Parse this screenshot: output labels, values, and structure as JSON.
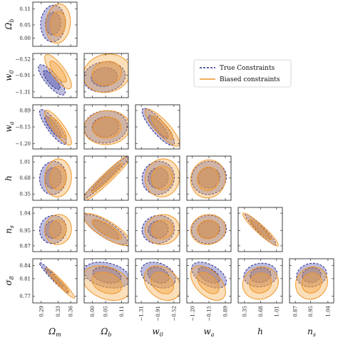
{
  "chart_data": {
    "type": "corner",
    "parameters": [
      {
        "key": "Om",
        "label": "Ω",
        "sub": "m",
        "ticks": [
          "0.29",
          "0.33",
          "0.36"
        ],
        "tick_values": [
          0.29,
          0.33,
          0.36
        ],
        "range": [
          0.27,
          0.375
        ]
      },
      {
        "key": "Ob",
        "label": "Ω",
        "sub": "b",
        "ticks": [
          "0.00",
          "0.05",
          "0.11"
        ],
        "tick_values": [
          0.0,
          0.05,
          0.11
        ],
        "range": [
          -0.03,
          0.135
        ]
      },
      {
        "key": "w0",
        "label": "w",
        "sub": "0",
        "ticks": [
          "−1.31",
          "−0.91",
          "−0.52"
        ],
        "tick_values": [
          -1.31,
          -0.91,
          -0.52
        ],
        "range": [
          -1.45,
          -0.38
        ]
      },
      {
        "key": "wa",
        "label": "w",
        "sub": "a",
        "ticks": [
          "−1.20",
          "−0.15",
          "0.89"
        ],
        "tick_values": [
          -1.2,
          -0.15,
          0.89
        ],
        "range": [
          -1.55,
          1.25
        ]
      },
      {
        "key": "h",
        "label": "h",
        "sub": "",
        "ticks": [
          "0.35",
          "0.68",
          "1.01"
        ],
        "tick_values": [
          0.35,
          0.68,
          1.01
        ],
        "range": [
          0.22,
          1.13
        ]
      },
      {
        "key": "ns",
        "label": "n",
        "sub": "s",
        "ticks": [
          "0.87",
          "0.95",
          "1.04"
        ],
        "tick_values": [
          0.87,
          0.95,
          1.04
        ],
        "range": [
          0.84,
          1.07
        ]
      },
      {
        "key": "s8",
        "label": "σ",
        "sub": "8",
        "ticks": [
          "0.77",
          "0.81",
          "0.84"
        ],
        "tick_values": [
          0.77,
          0.81,
          0.84
        ],
        "range": [
          0.755,
          0.855
        ]
      }
    ],
    "series": [
      {
        "name": "True Constraints",
        "color": "#2b2b8c",
        "fill": "#5a5ab0",
        "style": "dashed",
        "ellipses": [
          {
            "x": "Om",
            "y": "Ob",
            "cx": 0.318,
            "cy": 0.055,
            "sx": 0.012,
            "sy": 0.028,
            "rho": 0.05
          },
          {
            "x": "Om",
            "y": "w0",
            "cx": 0.315,
            "cy": -1.02,
            "sx": 0.013,
            "sy": 0.15,
            "rho": -0.8
          },
          {
            "x": "Ob",
            "y": "w0",
            "cx": 0.045,
            "cy": -0.95,
            "sx": 0.032,
            "sy": 0.15,
            "rho": 0.1
          },
          {
            "x": "Om",
            "y": "wa",
            "cx": 0.318,
            "cy": -0.15,
            "sx": 0.013,
            "sy": 0.45,
            "rho": -0.85
          },
          {
            "x": "Ob",
            "y": "wa",
            "cx": 0.05,
            "cy": -0.15,
            "sx": 0.033,
            "sy": 0.42,
            "rho": 0.05
          },
          {
            "x": "w0",
            "y": "wa",
            "cx": -0.9,
            "cy": -0.15,
            "sx": 0.16,
            "sy": 0.48,
            "rho": -0.85
          },
          {
            "x": "Om",
            "y": "h",
            "cx": 0.318,
            "cy": 0.68,
            "sx": 0.013,
            "sy": 0.14,
            "rho": 0.05
          },
          {
            "x": "Ob",
            "y": "h",
            "cx": 0.05,
            "cy": 0.68,
            "sx": 0.035,
            "sy": 0.18,
            "rho": 0.97
          },
          {
            "x": "w0",
            "y": "h",
            "cx": -0.9,
            "cy": 0.68,
            "sx": 0.16,
            "sy": 0.14,
            "rho": 0.05
          },
          {
            "x": "wa",
            "y": "h",
            "cx": -0.15,
            "cy": 0.68,
            "sx": 0.45,
            "sy": 0.14,
            "rho": 0.05
          },
          {
            "x": "Om",
            "y": "ns",
            "cx": 0.318,
            "cy": 0.955,
            "sx": 0.013,
            "sy": 0.03,
            "rho": 0.05
          },
          {
            "x": "Ob",
            "y": "ns",
            "cx": 0.05,
            "cy": 0.955,
            "sx": 0.033,
            "sy": 0.032,
            "rho": -0.8
          },
          {
            "x": "w0",
            "y": "ns",
            "cx": -0.9,
            "cy": 0.955,
            "sx": 0.16,
            "sy": 0.03,
            "rho": 0.05
          },
          {
            "x": "wa",
            "y": "ns",
            "cx": -0.15,
            "cy": 0.955,
            "sx": 0.45,
            "sy": 0.03,
            "rho": 0.05
          },
          {
            "x": "h",
            "y": "ns",
            "cx": 0.68,
            "cy": 0.955,
            "sx": 0.13,
            "sy": 0.033,
            "rho": -0.95
          },
          {
            "x": "Om",
            "y": "s8",
            "cx": 0.32,
            "cy": 0.812,
            "sx": 0.014,
            "sy": 0.014,
            "rho": -0.97
          },
          {
            "x": "Ob",
            "y": "s8",
            "cx": 0.055,
            "cy": 0.818,
            "sx": 0.035,
            "sy": 0.012,
            "rho": -0.3
          },
          {
            "x": "w0",
            "y": "s8",
            "cx": -0.9,
            "cy": 0.818,
            "sx": 0.17,
            "sy": 0.012,
            "rho": -0.3
          },
          {
            "x": "wa",
            "y": "s8",
            "cx": -0.15,
            "cy": 0.818,
            "sx": 0.45,
            "sy": 0.012,
            "rho": -0.5
          },
          {
            "x": "h",
            "y": "s8",
            "cx": 0.68,
            "cy": 0.818,
            "sx": 0.14,
            "sy": 0.011,
            "rho": 0.1
          },
          {
            "x": "ns",
            "y": "s8",
            "cx": 0.955,
            "cy": 0.818,
            "sx": 0.032,
            "sy": 0.011,
            "rho": 0.1
          }
        ]
      },
      {
        "name": "Biased constraints",
        "color": "#f0962a",
        "fill": "#f5a541",
        "style": "solid",
        "ellipses": [
          {
            "x": "Om",
            "y": "Ob",
            "cx": 0.33,
            "cy": 0.055,
            "sx": 0.012,
            "sy": 0.03,
            "rho": 0.1
          },
          {
            "x": "Om",
            "y": "w0",
            "cx": 0.33,
            "cy": -0.82,
            "sx": 0.013,
            "sy": 0.17,
            "rho": -0.8
          },
          {
            "x": "Ob",
            "y": "w0",
            "cx": 0.055,
            "cy": -0.86,
            "sx": 0.036,
            "sy": 0.19,
            "rho": 0.1
          },
          {
            "x": "Om",
            "y": "wa",
            "cx": 0.33,
            "cy": -0.2,
            "sx": 0.013,
            "sy": 0.45,
            "rho": -0.85
          },
          {
            "x": "Ob",
            "y": "wa",
            "cx": 0.055,
            "cy": -0.2,
            "sx": 0.035,
            "sy": 0.44,
            "rho": 0.05
          },
          {
            "x": "w0",
            "y": "wa",
            "cx": -0.8,
            "cy": -0.2,
            "sx": 0.17,
            "sy": 0.48,
            "rho": -0.85
          },
          {
            "x": "Om",
            "y": "h",
            "cx": 0.33,
            "cy": 0.68,
            "sx": 0.013,
            "sy": 0.16,
            "rho": 0.05
          },
          {
            "x": "Ob",
            "y": "h",
            "cx": 0.055,
            "cy": 0.68,
            "sx": 0.038,
            "sy": 0.2,
            "rho": 0.96
          },
          {
            "x": "w0",
            "y": "h",
            "cx": -0.8,
            "cy": 0.68,
            "sx": 0.17,
            "sy": 0.16,
            "rho": 0.05
          },
          {
            "x": "wa",
            "y": "h",
            "cx": -0.2,
            "cy": 0.66,
            "sx": 0.45,
            "sy": 0.16,
            "rho": 0.05
          },
          {
            "x": "Om",
            "y": "ns",
            "cx": 0.33,
            "cy": 0.955,
            "sx": 0.013,
            "sy": 0.032,
            "rho": 0.05
          },
          {
            "x": "Ob",
            "y": "ns",
            "cx": 0.055,
            "cy": 0.955,
            "sx": 0.036,
            "sy": 0.034,
            "rho": -0.8
          },
          {
            "x": "w0",
            "y": "ns",
            "cx": -0.8,
            "cy": 0.955,
            "sx": 0.17,
            "sy": 0.032,
            "rho": 0.05
          },
          {
            "x": "wa",
            "y": "ns",
            "cx": -0.2,
            "cy": 0.955,
            "sx": 0.45,
            "sy": 0.032,
            "rho": 0.05
          },
          {
            "x": "h",
            "y": "ns",
            "cx": 0.68,
            "cy": 0.955,
            "sx": 0.15,
            "sy": 0.035,
            "rho": -0.94
          },
          {
            "x": "Om",
            "y": "s8",
            "cx": 0.335,
            "cy": 0.8,
            "sx": 0.014,
            "sy": 0.014,
            "rho": -0.96
          },
          {
            "x": "Ob",
            "y": "s8",
            "cx": 0.055,
            "cy": 0.8,
            "sx": 0.037,
            "sy": 0.016,
            "rho": -0.3
          },
          {
            "x": "w0",
            "y": "s8",
            "cx": -0.8,
            "cy": 0.8,
            "sx": 0.18,
            "sy": 0.016,
            "rho": -0.3
          },
          {
            "x": "wa",
            "y": "s8",
            "cx": -0.2,
            "cy": 0.8,
            "sx": 0.45,
            "sy": 0.016,
            "rho": -0.5
          },
          {
            "x": "h",
            "y": "s8",
            "cx": 0.68,
            "cy": 0.8,
            "sx": 0.15,
            "sy": 0.015,
            "rho": 0.1
          },
          {
            "x": "ns",
            "y": "s8",
            "cx": 0.955,
            "cy": 0.8,
            "sx": 0.034,
            "sy": 0.015,
            "rho": 0.1
          }
        ]
      }
    ],
    "legend": {
      "placement": "upper-right"
    },
    "grid": false
  }
}
